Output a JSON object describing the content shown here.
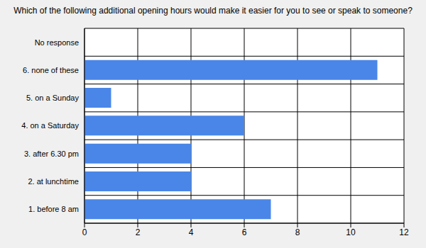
{
  "chart_data": {
    "type": "bar",
    "title": "Which of the following additional opening hours would make it easier for you to see or speak to someone?",
    "orientation": "horizontal",
    "categories": [
      "No response",
      "6. none of these",
      "5. on a Sunday",
      "4. on a Saturday",
      "3. after 6.30 pm",
      "2. at lunchtime",
      "1. before 8 am"
    ],
    "values": [
      0,
      11,
      1,
      6,
      4,
      4,
      7
    ],
    "color": "#4a86e8",
    "xlim": [
      0,
      12
    ],
    "xticks": [
      0,
      2,
      4,
      6,
      8,
      10,
      12
    ],
    "grid": true
  }
}
